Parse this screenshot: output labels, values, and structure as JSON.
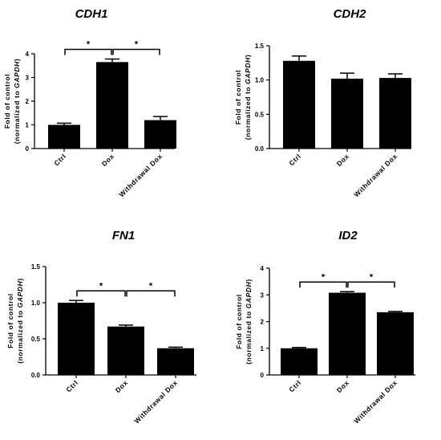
{
  "chart_data": [
    {
      "type": "bar",
      "title": "CDH1",
      "ylabel_line1": "Fold of control",
      "ylabel_line2_prefix": "(normalized to ",
      "ylabel_line2_gene": "GAPDH",
      "ylabel_line2_suffix": ")",
      "categories": [
        "Ctrl",
        "Dox",
        "Withdrawal Dox"
      ],
      "values": [
        1.0,
        3.65,
        1.2
      ],
      "errors": [
        0.07,
        0.13,
        0.15
      ],
      "ylim": [
        0,
        4
      ],
      "yticks": [
        "0",
        "1",
        "2",
        "3",
        "4"
      ],
      "yticks_values": [
        0,
        1,
        2,
        3,
        4
      ],
      "significance": [
        {
          "from": 0,
          "to": 1,
          "label": "*"
        },
        {
          "from": 1,
          "to": 2,
          "label": "*"
        }
      ]
    },
    {
      "type": "bar",
      "title": "CDH2",
      "ylabel_line1": "Fold of control",
      "ylabel_line2_prefix": "(normalized to ",
      "ylabel_line2_gene": "GAPDH",
      "ylabel_line2_suffix": ")",
      "categories": [
        "Ctrl",
        "Dox",
        "Withdrawal Dox"
      ],
      "values": [
        1.28,
        1.02,
        1.03
      ],
      "errors": [
        0.07,
        0.08,
        0.06
      ],
      "ylim": [
        0,
        1.5
      ],
      "yticks": [
        "0.0",
        "0.5",
        "1.0",
        "1.5"
      ],
      "yticks_values": [
        0,
        0.5,
        1.0,
        1.5
      ],
      "significance": []
    },
    {
      "type": "bar",
      "title": "FN1",
      "ylabel_line1": "Fold of control",
      "ylabel_line2_prefix": "(normalized to ",
      "ylabel_line2_gene": "GAPDH",
      "ylabel_line2_suffix": ")",
      "categories": [
        "Ctrl",
        "Dox",
        "Withdrawal Dox"
      ],
      "values": [
        1.0,
        0.67,
        0.37
      ],
      "errors": [
        0.03,
        0.02,
        0.015
      ],
      "ylim": [
        0,
        1.5
      ],
      "yticks": [
        "0.0",
        "0.5",
        "1.0",
        "1.5"
      ],
      "yticks_values": [
        0,
        0.5,
        1.0,
        1.5
      ],
      "significance": [
        {
          "from": 0,
          "to": 1,
          "label": "*"
        },
        {
          "from": 1,
          "to": 2,
          "label": "*"
        }
      ]
    },
    {
      "type": "bar",
      "title": "ID2",
      "ylabel_line1": "Fold of control",
      "ylabel_line2_prefix": "(normalized to ",
      "ylabel_line2_gene": "GAPDH",
      "ylabel_line2_suffix": ")",
      "categories": [
        "Ctrl",
        "Dox",
        "Withdrawal Dox"
      ],
      "values": [
        1.0,
        3.08,
        2.35
      ],
      "errors": [
        0.03,
        0.04,
        0.03
      ],
      "ylim": [
        0,
        4
      ],
      "yticks": [
        "0",
        "1",
        "2",
        "3",
        "4"
      ],
      "yticks_values": [
        0,
        1,
        2,
        3,
        4
      ],
      "significance": [
        {
          "from": 0,
          "to": 1,
          "label": "*"
        },
        {
          "from": 1,
          "to": 2,
          "label": "*"
        }
      ]
    }
  ]
}
